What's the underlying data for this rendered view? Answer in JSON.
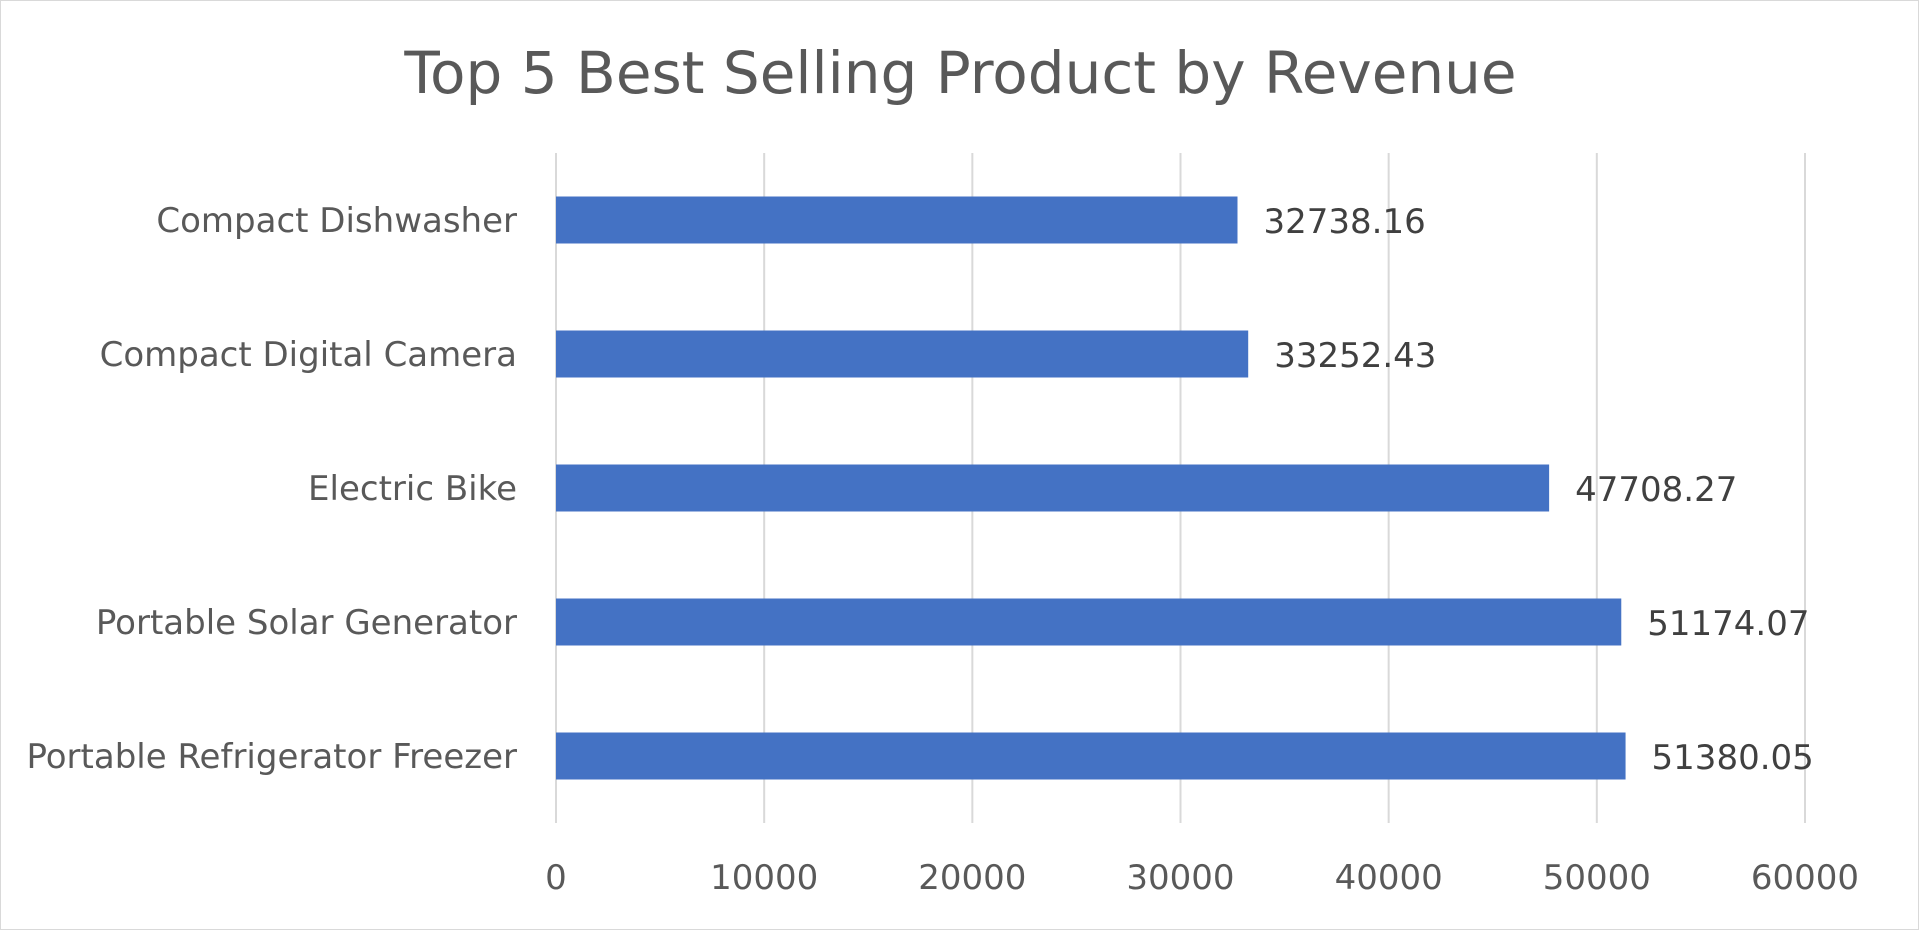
{
  "chart_data": {
    "type": "bar",
    "orientation": "horizontal",
    "title": "Top 5 Best Selling Product by Revenue",
    "categories": [
      "Compact Dishwasher",
      "Compact Digital Camera",
      "Electric Bike",
      "Portable Solar Generator",
      "Portable Refrigerator Freezer"
    ],
    "values": [
      32738.16,
      33252.43,
      47708.27,
      51174.07,
      51380.05
    ],
    "value_labels": [
      "32738.16",
      "33252.43",
      "47708.27",
      "51174.07",
      "51380.05"
    ],
    "xlim": [
      0,
      60000
    ],
    "x_ticks": [
      "0",
      "10000",
      "20000",
      "30000",
      "40000",
      "50000",
      "60000"
    ],
    "grid": "vertical",
    "legend": "none",
    "bar_color": "#4472c4",
    "grid_color": "#d9d9d9",
    "text_color": "#595959",
    "label_color": "#404040"
  }
}
